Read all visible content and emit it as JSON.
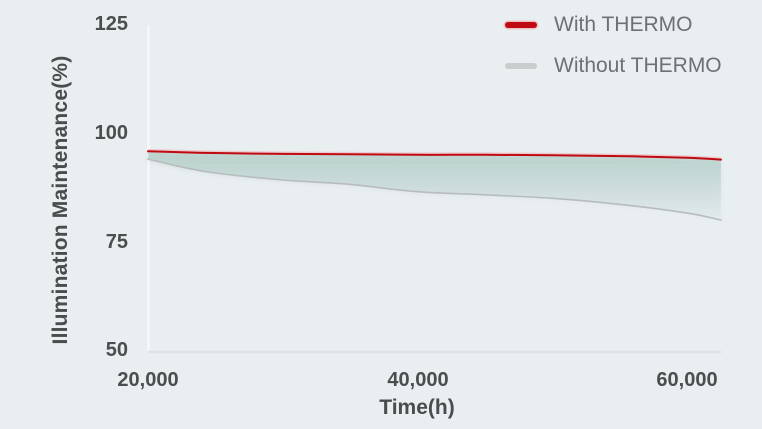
{
  "y_axis": {
    "label": "Illumination Maintenance(%)",
    "ticks": [
      "125",
      "100",
      "75",
      "50"
    ]
  },
  "x_axis": {
    "label": "Time(h)",
    "ticks": [
      "20,000",
      "40,000",
      "60,000"
    ]
  },
  "legend": [
    {
      "label": "With THERMO",
      "color": "#c00a12"
    },
    {
      "label": "Without THERMO",
      "color": "#c9cdcd"
    }
  ],
  "colors": {
    "background": "#e9eef1",
    "axis_line_vertical": "#f8fafb",
    "axis_line_horizontal": "#dde2e5",
    "tick_text": "#4b4d4f",
    "legend_text": "#6e7173",
    "red_halo": "#edb9bd"
  },
  "chart_data": {
    "type": "line",
    "title": "",
    "xlabel": "Time(h)",
    "ylabel": "Illumination Maintenance(%)",
    "x": [
      20000,
      22500,
      25000,
      30000,
      35000,
      40000,
      45000,
      50000,
      55000,
      60000,
      62500
    ],
    "series": [
      {
        "name": "With THERMO",
        "color": "#c00a12",
        "width": 2,
        "values": [
          95.8,
          95.6,
          95.4,
          95.2,
          95.1,
          95.0,
          95.0,
          94.9,
          94.7,
          94.3,
          93.9
        ]
      },
      {
        "name": "Without THERMO",
        "color": "#b7bcbc",
        "width": 1.6,
        "values": [
          94.0,
          92.2,
          90.8,
          89.2,
          88.2,
          86.5,
          85.8,
          85.0,
          83.6,
          81.6,
          80.0
        ]
      }
    ],
    "xlim": [
      20000,
      62500
    ],
    "ylim": [
      50,
      125
    ],
    "x_ticks": [
      20000,
      40000,
      60000
    ],
    "y_ticks": [
      50,
      75,
      100,
      125
    ],
    "grid": false,
    "legend_position": "top-right",
    "fill_between_series": true,
    "fill_color": "#9fc4ba"
  }
}
